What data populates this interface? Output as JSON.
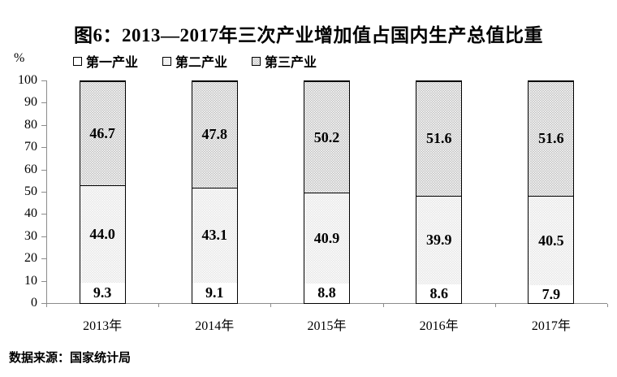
{
  "figure": {
    "title": "图6：2013—2017年三次产业增加值占国内生产总值比重",
    "y_unit_label": "%",
    "source_note": "数据来源：国家统计局"
  },
  "legend": {
    "items": [
      {
        "label": "第一产业"
      },
      {
        "label": "第二产业"
      },
      {
        "label": "第三产业"
      }
    ]
  },
  "chart_data": {
    "type": "bar",
    "stacked": true,
    "title": "图6：2013—2017年三次产业增加值占国内生产总值比重",
    "categories": [
      "2013年",
      "2014年",
      "2015年",
      "2016年",
      "2017年"
    ],
    "series": [
      {
        "name": "第一产业",
        "values": [
          9.3,
          9.1,
          8.8,
          8.6,
          7.9
        ],
        "fill": "#ffffff",
        "pattern": "none"
      },
      {
        "name": "第二产业",
        "values": [
          44.0,
          43.1,
          40.9,
          39.9,
          40.5
        ],
        "fill": "#d8d8d8",
        "pattern": "dots"
      },
      {
        "name": "第三产业",
        "values": [
          46.7,
          47.8,
          50.2,
          51.6,
          51.6
        ],
        "fill": "#9a9a9a",
        "pattern": "dots"
      }
    ],
    "xlabel": "",
    "ylabel": "%",
    "ylim": [
      0,
      100
    ],
    "y_ticks": [
      0,
      10,
      20,
      30,
      40,
      50,
      60,
      70,
      80,
      90,
      100
    ],
    "grid": false,
    "legend_position": "top",
    "value_label_decimals": 1,
    "bar_border_color": "#000000",
    "axis_color": "#8c8c8c"
  }
}
